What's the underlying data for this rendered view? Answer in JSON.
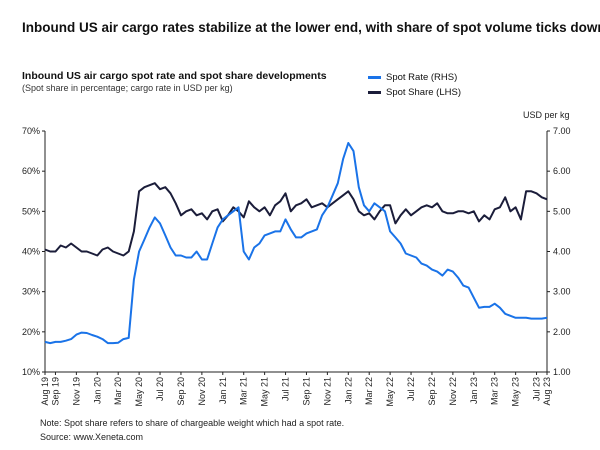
{
  "headline": "Inbound US air cargo rates stabilize at the lower end, with share of spot volume ticks down",
  "chart_data": {
    "type": "line",
    "title": "Inbound US air cargo spot rate and spot share developments",
    "subtitle": "(Spot share in percentage; cargo rate in USD per kg)",
    "right_axis_unit": "USD per kg",
    "legend": [
      {
        "name": "Spot Rate (RHS)",
        "color": "#1a73e8"
      },
      {
        "name": "Spot Share (LHS)",
        "color": "#1b1d3a"
      }
    ],
    "left_axis": {
      "ticks": [
        "10%",
        "20%",
        "30%",
        "40%",
        "50%",
        "60%",
        "70%"
      ],
      "range": [
        10,
        70
      ]
    },
    "right_axis": {
      "ticks": [
        "1.00",
        "2.00",
        "3.00",
        "4.00",
        "5.00",
        "6.00",
        "7.00"
      ],
      "range": [
        1,
        7
      ]
    },
    "x_tick_labels": [
      "Aug 19",
      "Sep 19",
      "Nov 19",
      "Jan 20",
      "Mar 20",
      "May 20",
      "Jul 20",
      "Sep 20",
      "Nov 20",
      "Jan 21",
      "Mar 21",
      "May 21",
      "Jul 21",
      "Sep 21",
      "Nov 21",
      "Jan 22",
      "Mar 22",
      "May 22",
      "Jul 22",
      "Sep 22",
      "Nov 22",
      "Jan 23",
      "Mar 23",
      "May 23",
      "Jul 23",
      "Aug 23"
    ],
    "x_tick_months": [
      0,
      1,
      3,
      5,
      7,
      9,
      11,
      13,
      15,
      17,
      19,
      21,
      23,
      25,
      27,
      29,
      31,
      33,
      35,
      37,
      39,
      41,
      43,
      45,
      47,
      48
    ],
    "x_range_months": [
      0,
      48
    ],
    "series": [
      {
        "name": "Spot Share (LHS)",
        "axis": "left",
        "points": [
          [
            0,
            40.5
          ],
          [
            0.5,
            40
          ],
          [
            1,
            40
          ],
          [
            1.5,
            41.5
          ],
          [
            2,
            41
          ],
          [
            2.5,
            42
          ],
          [
            3,
            41
          ],
          [
            3.5,
            40
          ],
          [
            4,
            40
          ],
          [
            4.5,
            39.5
          ],
          [
            5,
            39
          ],
          [
            5.5,
            40.5
          ],
          [
            6,
            41
          ],
          [
            6.5,
            40
          ],
          [
            7,
            39.5
          ],
          [
            7.5,
            39
          ],
          [
            8,
            40
          ],
          [
            8.5,
            45
          ],
          [
            9,
            55
          ],
          [
            9.5,
            56
          ],
          [
            10,
            56.5
          ],
          [
            10.5,
            57
          ],
          [
            11,
            55.5
          ],
          [
            11.5,
            56
          ],
          [
            12,
            54.5
          ],
          [
            12.5,
            52
          ],
          [
            13,
            49
          ],
          [
            13.5,
            50
          ],
          [
            14,
            50.5
          ],
          [
            14.5,
            49
          ],
          [
            15,
            49.5
          ],
          [
            15.5,
            48
          ],
          [
            16,
            50
          ],
          [
            16.5,
            50.5
          ],
          [
            17,
            47.5
          ],
          [
            17.5,
            49
          ],
          [
            18,
            51
          ],
          [
            18.5,
            50
          ],
          [
            19,
            48.5
          ],
          [
            19.5,
            52.5
          ],
          [
            20,
            51
          ],
          [
            20.5,
            50
          ],
          [
            21,
            51
          ],
          [
            21.5,
            49
          ],
          [
            22,
            51.5
          ],
          [
            22.5,
            52.5
          ],
          [
            23,
            54.5
          ],
          [
            23.5,
            50
          ],
          [
            24,
            51.5
          ],
          [
            24.5,
            52
          ],
          [
            25,
            53
          ],
          [
            25.5,
            51
          ],
          [
            26,
            51.5
          ],
          [
            26.5,
            52
          ],
          [
            27,
            51
          ],
          [
            27.5,
            52
          ],
          [
            28,
            53
          ],
          [
            28.5,
            54
          ],
          [
            29,
            55
          ],
          [
            29.5,
            53
          ],
          [
            30,
            50
          ],
          [
            30.5,
            49
          ],
          [
            31,
            49.5
          ],
          [
            31.5,
            48
          ],
          [
            32,
            50
          ],
          [
            32.5,
            51.5
          ],
          [
            33,
            51.5
          ],
          [
            33.5,
            47
          ],
          [
            34,
            49
          ],
          [
            34.5,
            50.5
          ],
          [
            35,
            49
          ],
          [
            35.5,
            50
          ],
          [
            36,
            51
          ],
          [
            36.5,
            51.5
          ],
          [
            37,
            51
          ],
          [
            37.5,
            52
          ],
          [
            38,
            50
          ],
          [
            38.5,
            49.5
          ],
          [
            39,
            49.5
          ],
          [
            39.5,
            50
          ],
          [
            40,
            50
          ],
          [
            40.5,
            49.5
          ],
          [
            41,
            50
          ],
          [
            41.5,
            47.5
          ],
          [
            42,
            49
          ],
          [
            42.5,
            48
          ],
          [
            43,
            50.5
          ],
          [
            43.5,
            51
          ],
          [
            44,
            53.5
          ],
          [
            44.5,
            50
          ],
          [
            45,
            51
          ],
          [
            45.5,
            48
          ],
          [
            46,
            55
          ],
          [
            46.5,
            55
          ],
          [
            47,
            54.5
          ],
          [
            47.5,
            53.5
          ],
          [
            48,
            53
          ]
        ]
      },
      {
        "name": "Spot Rate (RHS)",
        "axis": "right",
        "points": [
          [
            0,
            1.75
          ],
          [
            0.5,
            1.72
          ],
          [
            1,
            1.75
          ],
          [
            1.5,
            1.75
          ],
          [
            2,
            1.78
          ],
          [
            2.5,
            1.82
          ],
          [
            3,
            1.93
          ],
          [
            3.5,
            1.98
          ],
          [
            4,
            1.97
          ],
          [
            4.5,
            1.92
          ],
          [
            5,
            1.88
          ],
          [
            5.5,
            1.82
          ],
          [
            6,
            1.72
          ],
          [
            6.5,
            1.72
          ],
          [
            7,
            1.73
          ],
          [
            7.5,
            1.82
          ],
          [
            8,
            1.85
          ],
          [
            8.5,
            3.3
          ],
          [
            9,
            4.0
          ],
          [
            9.5,
            4.3
          ],
          [
            10,
            4.6
          ],
          [
            10.5,
            4.85
          ],
          [
            11,
            4.7
          ],
          [
            11.5,
            4.4
          ],
          [
            12,
            4.1
          ],
          [
            12.5,
            3.9
          ],
          [
            13,
            3.9
          ],
          [
            13.5,
            3.85
          ],
          [
            14,
            3.85
          ],
          [
            14.5,
            4.0
          ],
          [
            15,
            3.8
          ],
          [
            15.5,
            3.8
          ],
          [
            16,
            4.2
          ],
          [
            16.5,
            4.6
          ],
          [
            17,
            4.8
          ],
          [
            17.5,
            4.9
          ],
          [
            18,
            5.0
          ],
          [
            18.5,
            5.1
          ],
          [
            19,
            4.0
          ],
          [
            19.5,
            3.8
          ],
          [
            20,
            4.1
          ],
          [
            20.5,
            4.2
          ],
          [
            21,
            4.4
          ],
          [
            21.5,
            4.45
          ],
          [
            22,
            4.5
          ],
          [
            22.5,
            4.5
          ],
          [
            23,
            4.8
          ],
          [
            23.5,
            4.55
          ],
          [
            24,
            4.35
          ],
          [
            24.5,
            4.35
          ],
          [
            25,
            4.45
          ],
          [
            25.5,
            4.5
          ],
          [
            26,
            4.55
          ],
          [
            26.5,
            4.9
          ],
          [
            27,
            5.1
          ],
          [
            27.5,
            5.4
          ],
          [
            28,
            5.7
          ],
          [
            28.5,
            6.3
          ],
          [
            29,
            6.7
          ],
          [
            29.5,
            6.5
          ],
          [
            30,
            5.6
          ],
          [
            30.5,
            5.15
          ],
          [
            31,
            5.0
          ],
          [
            31.5,
            5.2
          ],
          [
            32,
            5.1
          ],
          [
            32.5,
            5.0
          ],
          [
            33,
            4.5
          ],
          [
            33.5,
            4.35
          ],
          [
            34,
            4.2
          ],
          [
            34.5,
            3.95
          ],
          [
            35,
            3.9
          ],
          [
            35.5,
            3.85
          ],
          [
            36,
            3.7
          ],
          [
            36.5,
            3.65
          ],
          [
            37,
            3.55
          ],
          [
            37.5,
            3.5
          ],
          [
            38,
            3.4
          ],
          [
            38.5,
            3.55
          ],
          [
            39,
            3.5
          ],
          [
            39.5,
            3.35
          ],
          [
            40,
            3.15
          ],
          [
            40.5,
            3.1
          ],
          [
            41,
            2.85
          ],
          [
            41.5,
            2.6
          ],
          [
            42,
            2.62
          ],
          [
            42.5,
            2.62
          ],
          [
            43,
            2.7
          ],
          [
            43.5,
            2.6
          ],
          [
            44,
            2.45
          ],
          [
            44.5,
            2.4
          ],
          [
            45,
            2.35
          ],
          [
            45.5,
            2.35
          ],
          [
            46,
            2.35
          ],
          [
            46.5,
            2.33
          ],
          [
            47,
            2.33
          ],
          [
            47.5,
            2.33
          ],
          [
            48,
            2.35
          ]
        ]
      }
    ]
  },
  "footnote": "Note: Spot share refers to share of chargeable weight which had a spot rate.",
  "source": "Source: www.Xeneta.com"
}
